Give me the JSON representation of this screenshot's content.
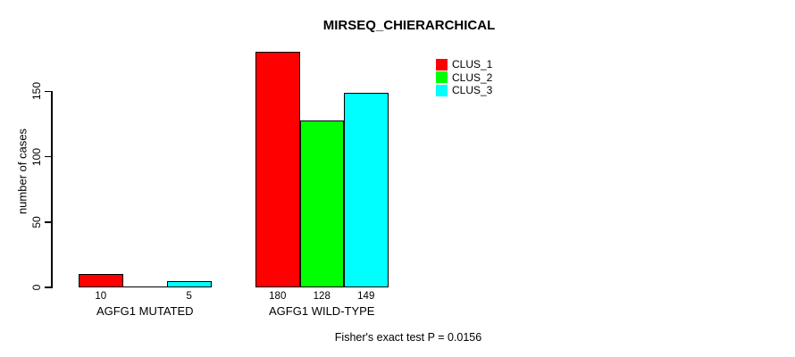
{
  "chart_data": {
    "type": "bar",
    "title": "MIRSEQ_CHIERARCHICAL",
    "xlabel": "",
    "ylabel": "number of cases",
    "categories": [
      "AGFG1 MUTATED",
      "AGFG1 WILD-TYPE"
    ],
    "series": [
      {
        "name": "CLUS_1",
        "color": "#ff0000",
        "values": [
          10,
          180
        ],
        "bar_labels": [
          "10",
          "180"
        ]
      },
      {
        "name": "CLUS_2",
        "color": "#00ff00",
        "values": [
          0,
          128
        ],
        "bar_labels": [
          "",
          "128"
        ]
      },
      {
        "name": "CLUS_3",
        "color": "#00ffff",
        "values": [
          5,
          149
        ],
        "bar_labels": [
          "5",
          "149"
        ]
      }
    ],
    "yticks": [
      0,
      50,
      100,
      150
    ],
    "ytick_labels": [
      "0",
      "50",
      "100",
      "150"
    ],
    "ylim": [
      0,
      185
    ],
    "grid": false,
    "legend": {
      "position": "top-right",
      "entries": [
        {
          "label": "CLUS_1",
          "color": "#ff0000"
        },
        {
          "label": "CLUS_2",
          "color": "#00ff00"
        },
        {
          "label": "CLUS_3",
          "color": "#00ffff"
        }
      ]
    },
    "annotation": "Fisher's exact test P = 0.0156",
    "bar_border_color": "#000000",
    "axis_color": "#000000",
    "text_color": "#000000",
    "background_color": "#ffffff"
  }
}
